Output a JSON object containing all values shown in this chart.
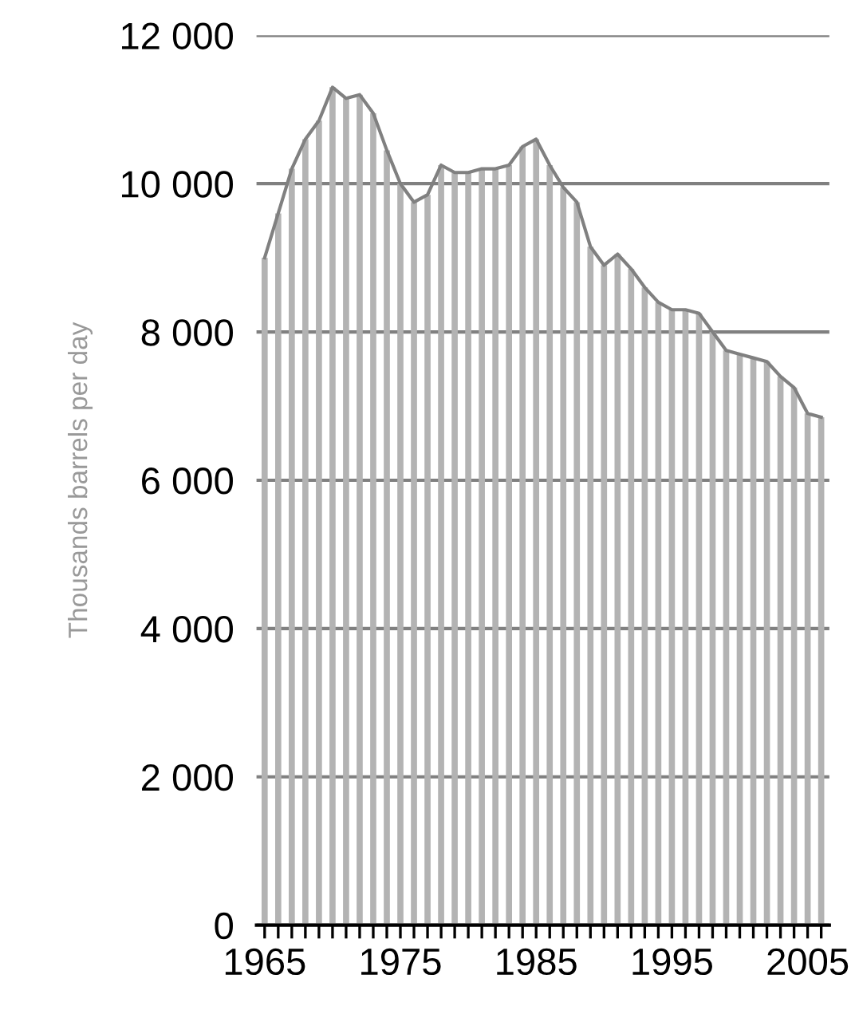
{
  "chart_data": {
    "type": "bar",
    "ylabel": "Thousands barrels per day",
    "categories": [
      "1965",
      null,
      null,
      null,
      null,
      null,
      null,
      null,
      null,
      null,
      "1975",
      null,
      null,
      null,
      null,
      null,
      null,
      null,
      null,
      null,
      "1985",
      null,
      null,
      null,
      null,
      null,
      null,
      null,
      null,
      null,
      "1995",
      null,
      null,
      null,
      null,
      null,
      null,
      null,
      null,
      null,
      "2005",
      null
    ],
    "series": [
      {
        "color": "#b3b3b3",
        "values": [
          9000,
          9600,
          10200,
          10600,
          10850,
          11300,
          11150,
          11200,
          10950,
          10450,
          10000,
          9750,
          9850,
          10250,
          10150,
          10150,
          10200,
          10200,
          10250,
          10500,
          10600,
          10250,
          9950,
          9750,
          9150,
          8900,
          9050,
          8850,
          8600,
          8400,
          8300,
          8300,
          8250,
          8000,
          7750,
          7700,
          7650,
          7600,
          7400,
          7250,
          6900,
          6850
        ]
      },
      {
        "type": "line",
        "color": "#808080",
        "values": [
          9000,
          9600,
          10200,
          10600,
          10850,
          11300,
          11150,
          11200,
          10950,
          10450,
          10000,
          9750,
          9850,
          10250,
          10150,
          10150,
          10200,
          10200,
          10250,
          10500,
          10600,
          10250,
          9950,
          9750,
          9150,
          8900,
          9050,
          8850,
          8600,
          8400,
          8300,
          8300,
          8250,
          8000,
          7750,
          7700,
          7650,
          7600,
          7400,
          7250,
          6900,
          6850
        ]
      }
    ],
    "ylim": [
      0,
      12000
    ],
    "yticks": [
      0,
      {
        "value": 2000,
        "label": "2 000"
      },
      {
        "value": 4000,
        "label": "4 000"
      },
      {
        "value": 6000,
        "label": "6 000"
      },
      {
        "value": 8000,
        "label": "8 000"
      },
      {
        "value": 10000,
        "label": "10 000"
      },
      {
        "value": 12000,
        "label": "12 000"
      }
    ],
    "grid": "y",
    "legend": false,
    "marker": "none",
    "line_style": "solid"
  }
}
